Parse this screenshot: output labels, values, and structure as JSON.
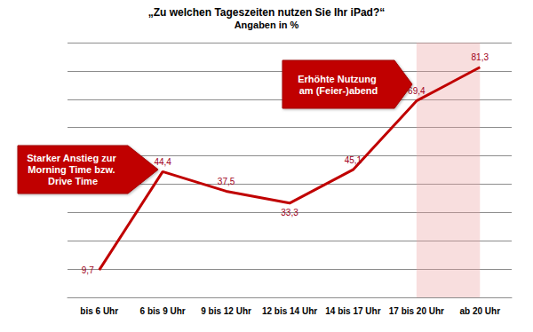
{
  "chart_data": {
    "type": "line",
    "title": "„Zu welchen Tageszeiten nutzen Sie Ihr iPad?“",
    "subtitle": "Angaben in %",
    "categories": [
      "bis 6 Uhr",
      "6 bis 9 Uhr",
      "9 bis 12 Uhr",
      "12 bis 14 Uhr",
      "14 bis 17 Uhr",
      "17 bis 20 Uhr",
      "ab 20 Uhr"
    ],
    "values": [
      9.7,
      44.4,
      37.5,
      33.3,
      45.1,
      69.4,
      81.3
    ],
    "value_labels": [
      "9,7",
      "44,4",
      "37,5",
      "33,3",
      "45,1",
      "69,4",
      "81,3"
    ],
    "color": "#c00000",
    "ylim": [
      0,
      90
    ],
    "yticks": [
      0,
      10,
      20,
      30,
      40,
      50,
      60,
      70,
      80,
      90
    ],
    "grid": true,
    "data_labels": true,
    "tick_labels": "x",
    "annotations": [
      {
        "text": "Starker Anstieg zur Morning Time bzw. Drive Time",
        "highlight": [
          "6 bis 9 Uhr"
        ]
      },
      {
        "text": "Erhöhte Nutzung am (Feier-)abend",
        "highlight": [
          "17 bis 20 Uhr",
          "ab 20 Uhr"
        ]
      }
    ]
  }
}
